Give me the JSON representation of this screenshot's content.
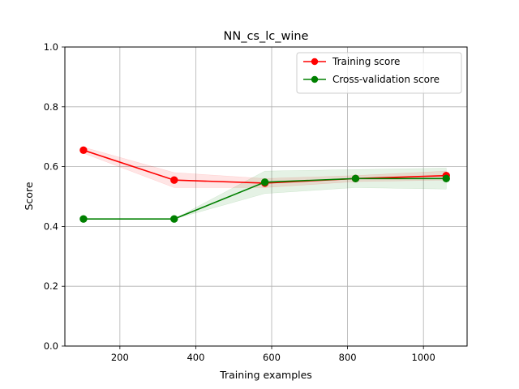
{
  "chart_data": {
    "type": "line",
    "title": "NN_cs_lc_wine",
    "xlabel": "Training examples",
    "ylabel": "Score",
    "xlim": [
      55,
      1115
    ],
    "ylim": [
      0.0,
      1.0
    ],
    "xticks": [
      200,
      400,
      600,
      800,
      1000
    ],
    "yticks": [
      0.0,
      0.2,
      0.4,
      0.6,
      0.8,
      1.0
    ],
    "grid": true,
    "legend_position": "upper right",
    "x": [
      104,
      343,
      582,
      821,
      1060
    ],
    "series": [
      {
        "name": "Training score",
        "color": "#ff0000",
        "values": [
          0.655,
          0.555,
          0.545,
          0.56,
          0.57
        ],
        "band_low": [
          0.645,
          0.53,
          0.53,
          0.55,
          0.555
        ],
        "band_high": [
          0.665,
          0.58,
          0.56,
          0.57,
          0.585
        ]
      },
      {
        "name": "Cross-validation score",
        "color": "#008000",
        "values": [
          0.425,
          0.425,
          0.548,
          0.56,
          0.56
        ],
        "band_low": [
          0.425,
          0.425,
          0.51,
          0.53,
          0.525
        ],
        "band_high": [
          0.425,
          0.425,
          0.585,
          0.59,
          0.595
        ]
      }
    ]
  }
}
